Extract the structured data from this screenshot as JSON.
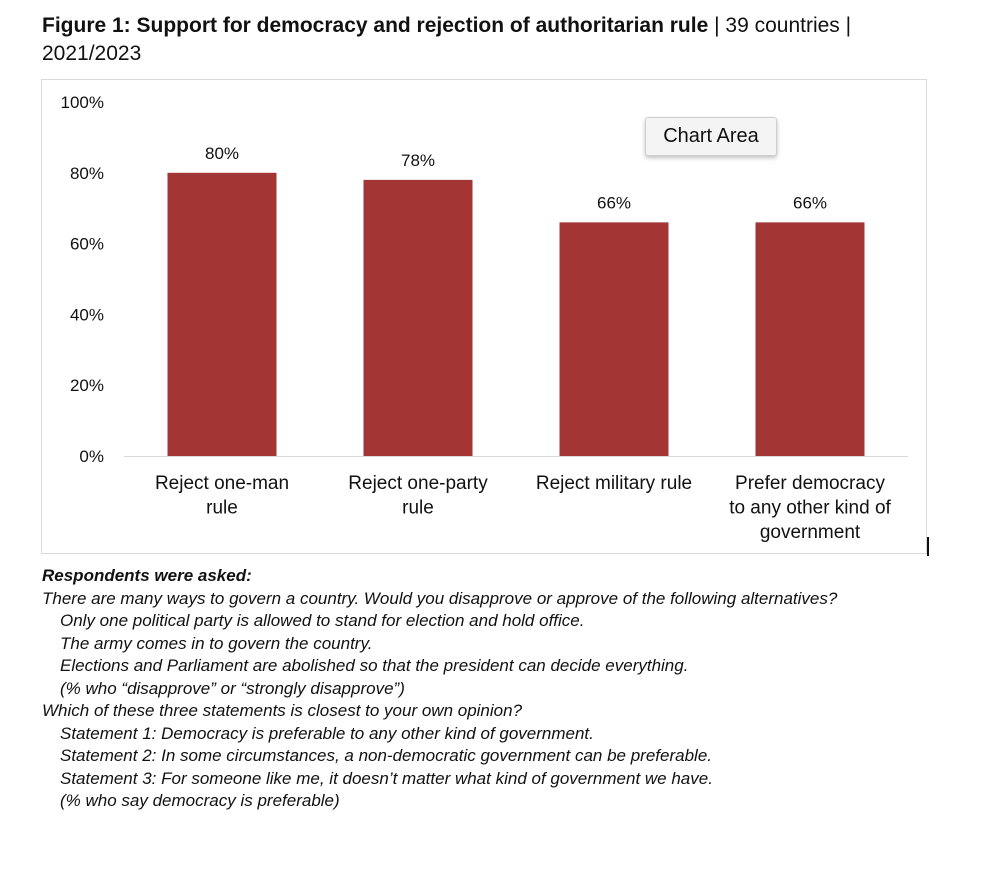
{
  "title": {
    "bold": "Figure 1: Support for democracy and rejection of authoritarian rule",
    "rest": " | 39 countries | 2021/2023"
  },
  "tooltip": "Chart Area",
  "chart_data": {
    "type": "bar",
    "categories": [
      [
        "Reject one-man",
        "rule"
      ],
      [
        "Reject one-party",
        "rule"
      ],
      [
        "Reject military rule"
      ],
      [
        "Prefer democracy",
        "to any other kind of",
        "government"
      ]
    ],
    "values": [
      80,
      78,
      66,
      66
    ],
    "data_labels": [
      "80%",
      "78%",
      "66%",
      "66%"
    ],
    "ylim": [
      0,
      100
    ],
    "yticks": [
      "0%",
      "20%",
      "40%",
      "60%",
      "80%",
      "100%"
    ],
    "bar_color": "#A33535",
    "grid": false,
    "legend": "none"
  },
  "notes": {
    "heading": "Respondents were asked:",
    "q1": "There are many ways to govern a country. Would you disapprove or approve of the following alternatives?",
    "q1_items": [
      "Only one political party is allowed to stand for election and hold office.",
      "The army comes in to govern the country.",
      "Elections and Parliament are abolished so that the president can decide everything.",
      "(% who “disapprove” or “strongly disapprove”)"
    ],
    "q2": "Which of these three statements is closest to your own opinion?",
    "q2_items": [
      "Statement 1: Democracy is preferable to any other kind of government.",
      "Statement 2: In some circumstances, a non-democratic government can be preferable.",
      "Statement 3: For someone like me, it doesn’t matter what kind of government we have.",
      "(% who say democracy is preferable)"
    ]
  }
}
